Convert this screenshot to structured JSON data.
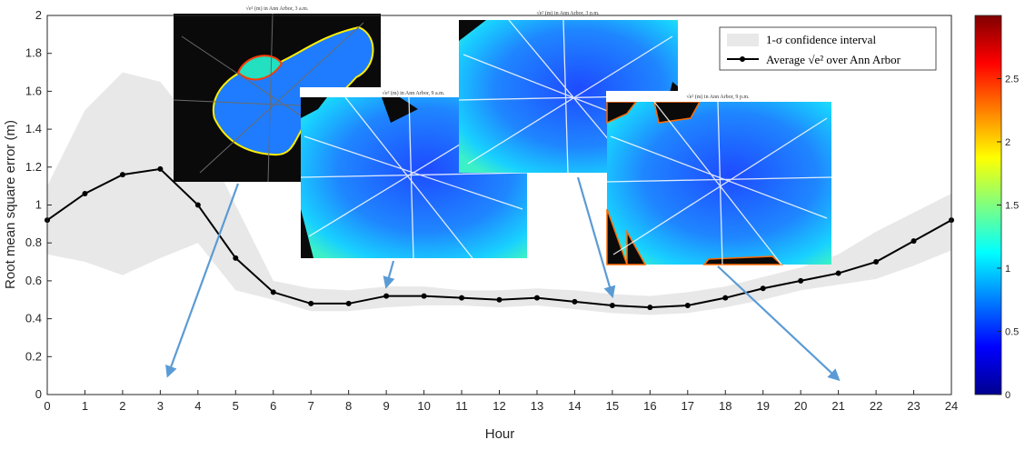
{
  "chart_data": {
    "type": "line",
    "xlabel": "Hour",
    "ylabel": "Root mean square error (m)",
    "xlim": [
      0,
      24
    ],
    "ylim": [
      0,
      2
    ],
    "x_ticks": [
      "0",
      "1",
      "2",
      "3",
      "4",
      "5",
      "6",
      "7",
      "8",
      "9",
      "10",
      "11",
      "12",
      "13",
      "14",
      "15",
      "16",
      "17",
      "18",
      "19",
      "20",
      "21",
      "22",
      "23",
      "24"
    ],
    "y_ticks": [
      "0",
      "0.2",
      "0.4",
      "0.6",
      "0.8",
      "1",
      "1.2",
      "1.4",
      "1.6",
      "1.8",
      "2"
    ],
    "grid": false,
    "legend_position": "top-right",
    "legend": {
      "band_label": "1-σ confidence interval",
      "line_label_prefix": "Average ",
      "line_label_math": "√e²",
      "line_label_suffix": " over Ann Arbor"
    },
    "series": [
      {
        "x": [
          0,
          1,
          2,
          3,
          4,
          5,
          6,
          7,
          8,
          9,
          10,
          11,
          12,
          13,
          14,
          15,
          16,
          17,
          18,
          19,
          20,
          21,
          22,
          23,
          24
        ],
        "values": [
          0.92,
          1.06,
          1.16,
          1.19,
          1.0,
          0.72,
          0.54,
          0.48,
          0.48,
          0.52,
          0.52,
          0.51,
          0.5,
          0.51,
          0.49,
          0.47,
          0.46,
          0.47,
          0.51,
          0.56,
          0.6,
          0.64,
          0.7,
          0.81,
          0.92
        ],
        "color": "#000000"
      }
    ],
    "band": {
      "x": [
        0,
        1,
        2,
        3,
        4,
        5,
        6,
        7,
        8,
        9,
        10,
        11,
        12,
        13,
        14,
        15,
        16,
        17,
        18,
        19,
        20,
        21,
        22,
        23,
        24
      ],
      "upper": [
        1.1,
        1.5,
        1.7,
        1.65,
        1.4,
        1.0,
        0.6,
        0.56,
        0.55,
        0.57,
        0.57,
        0.55,
        0.55,
        0.56,
        0.55,
        0.53,
        0.52,
        0.54,
        0.57,
        0.62,
        0.67,
        0.74,
        0.86,
        0.96,
        1.06
      ],
      "lower": [
        0.74,
        0.7,
        0.63,
        0.72,
        0.8,
        0.55,
        0.5,
        0.44,
        0.44,
        0.46,
        0.47,
        0.47,
        0.46,
        0.47,
        0.45,
        0.43,
        0.42,
        0.43,
        0.46,
        0.5,
        0.55,
        0.58,
        0.61,
        0.68,
        0.76
      ],
      "color": "#e8e8e8"
    },
    "colorbar": {
      "range": [
        0,
        3
      ],
      "tick_labels": [
        "0",
        "0.5",
        "1",
        "1.5",
        "2",
        "2.5"
      ],
      "tick_values": [
        0,
        0.5,
        1,
        1.5,
        2,
        2.5
      ]
    },
    "insets": [
      {
        "title": "√e² (m) in Ann Arbor, 3 a.m.",
        "hour": 3,
        "arrow_target": [
          3.2,
          0.1
        ]
      },
      {
        "title": "√e² (m) in Ann Arbor, 9 a.m.",
        "hour": 9,
        "arrow_target": [
          9.0,
          0.57
        ]
      },
      {
        "title": "√e² (m) in Ann Arbor, 3 p.m.",
        "hour": 15,
        "arrow_target": [
          15.0,
          0.52
        ]
      },
      {
        "title": "√e² (m) in Ann Arbor, 9 p.m.",
        "hour": 21,
        "arrow_target": [
          21.0,
          0.08
        ]
      }
    ],
    "colors": {
      "arrow": "#5b9bd5",
      "axis": "#262626"
    }
  }
}
